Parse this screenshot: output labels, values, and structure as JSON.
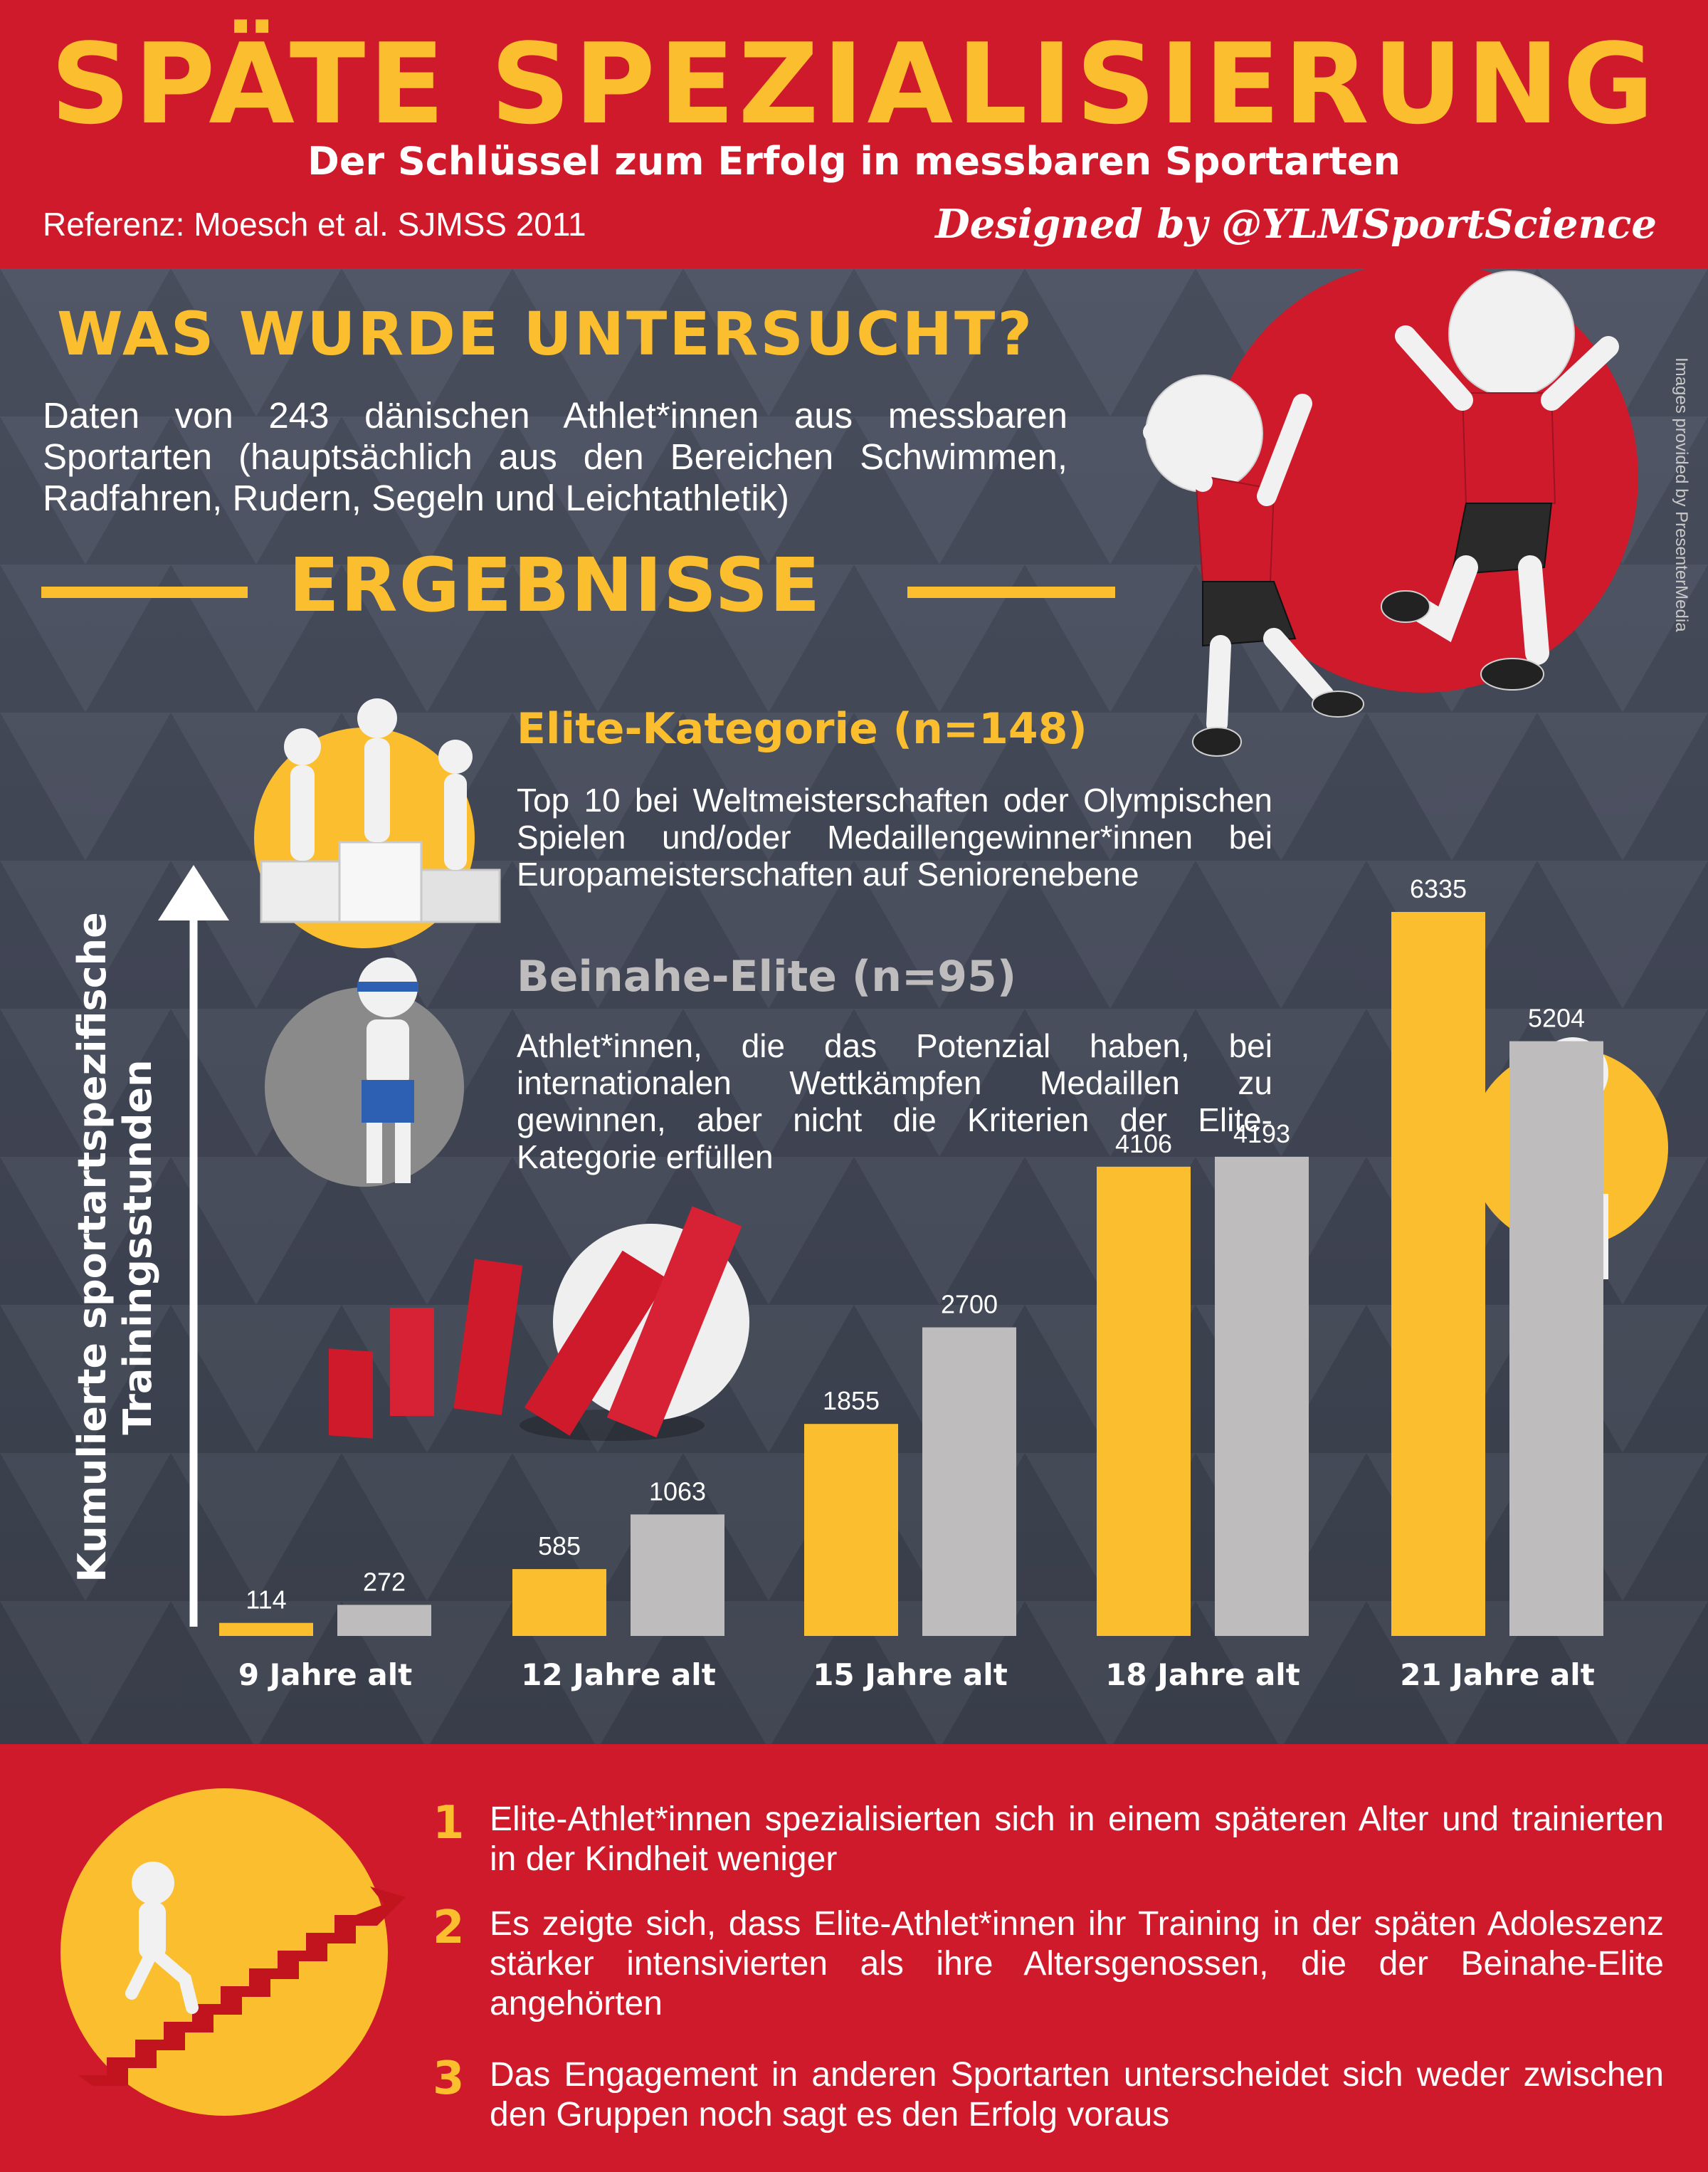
{
  "header": {
    "title": "SPÄTE SPEZIALISIERUNG",
    "subtitle": "Der Schlüssel zum Erfolg in messbaren Sportarten",
    "reference": "Referenz: Moesch et al. SJMSS 2011",
    "credit": "Designed by @YLMSportScience"
  },
  "study": {
    "heading": "WAS WURDE UNTERSUCHT?",
    "text": "Daten von 243 dänischen Athlet*innen aus messbaren Sportarten (hauptsächlich aus den Bereichen Schwimmen, Radfahren, Rudern, Segeln und Leichtathletik)"
  },
  "image_credit": "Images provided by PresenterMedia",
  "results": {
    "heading": "ERGEBNISSE",
    "elite_title": "Elite-Kategorie (n=148)",
    "elite_desc": "Top 10 bei Weltmeisterschaften oder Olympischen Spielen und/oder Medaillengewinner*innen bei Europameisterschaften auf Seniorenebene",
    "near_title": "Beinahe-Elite (n=95)",
    "near_desc": "Athlet*innen, die das Potenzial haben, bei internationalen Wettkämpfen Medaillen zu gewinnen, aber nicht die Kriterien der Elite-Kategorie erfüllen"
  },
  "colors": {
    "red": "#cf1a2b",
    "yellow": "#fbbe2e",
    "grey": "#bfbcbd",
    "background": "#434957"
  },
  "chart_data": {
    "type": "bar",
    "ylabel": "Kumulierte sportartspezifische Trainingsstunden",
    "categories": [
      "9 Jahre alt",
      "12 Jahre alt",
      "15 Jahre alt",
      "18 Jahre alt",
      "21 Jahre alt"
    ],
    "series": [
      {
        "name": "Elite-Kategorie (n=148)",
        "color": "#fbbe2e",
        "values": [
          114,
          585,
          1855,
          4106,
          6335
        ]
      },
      {
        "name": "Beinahe-Elite (n=95)",
        "color": "#bfbcbd",
        "values": [
          272,
          1063,
          2700,
          4193,
          5204
        ]
      }
    ],
    "ylim": [
      0,
      6335
    ],
    "grid": false,
    "legend": "top-left"
  },
  "conclusions": [
    {
      "num": "1",
      "text": "Elite-Athlet*innen spezialisierten sich in einem späteren Alter und trainierten in der Kindheit weniger"
    },
    {
      "num": "2",
      "text": "Es zeigte sich, dass Elite-Athlet*innen ihr Training in der späten Adoleszenz stärker intensivierten als ihre Altersgenossen, die der Beinahe-Elite angehörten"
    },
    {
      "num": "3",
      "text": "Das Engagement in anderen Sportarten unterscheidet sich weder zwischen den Gruppen noch sagt es den Erfolg voraus"
    }
  ]
}
